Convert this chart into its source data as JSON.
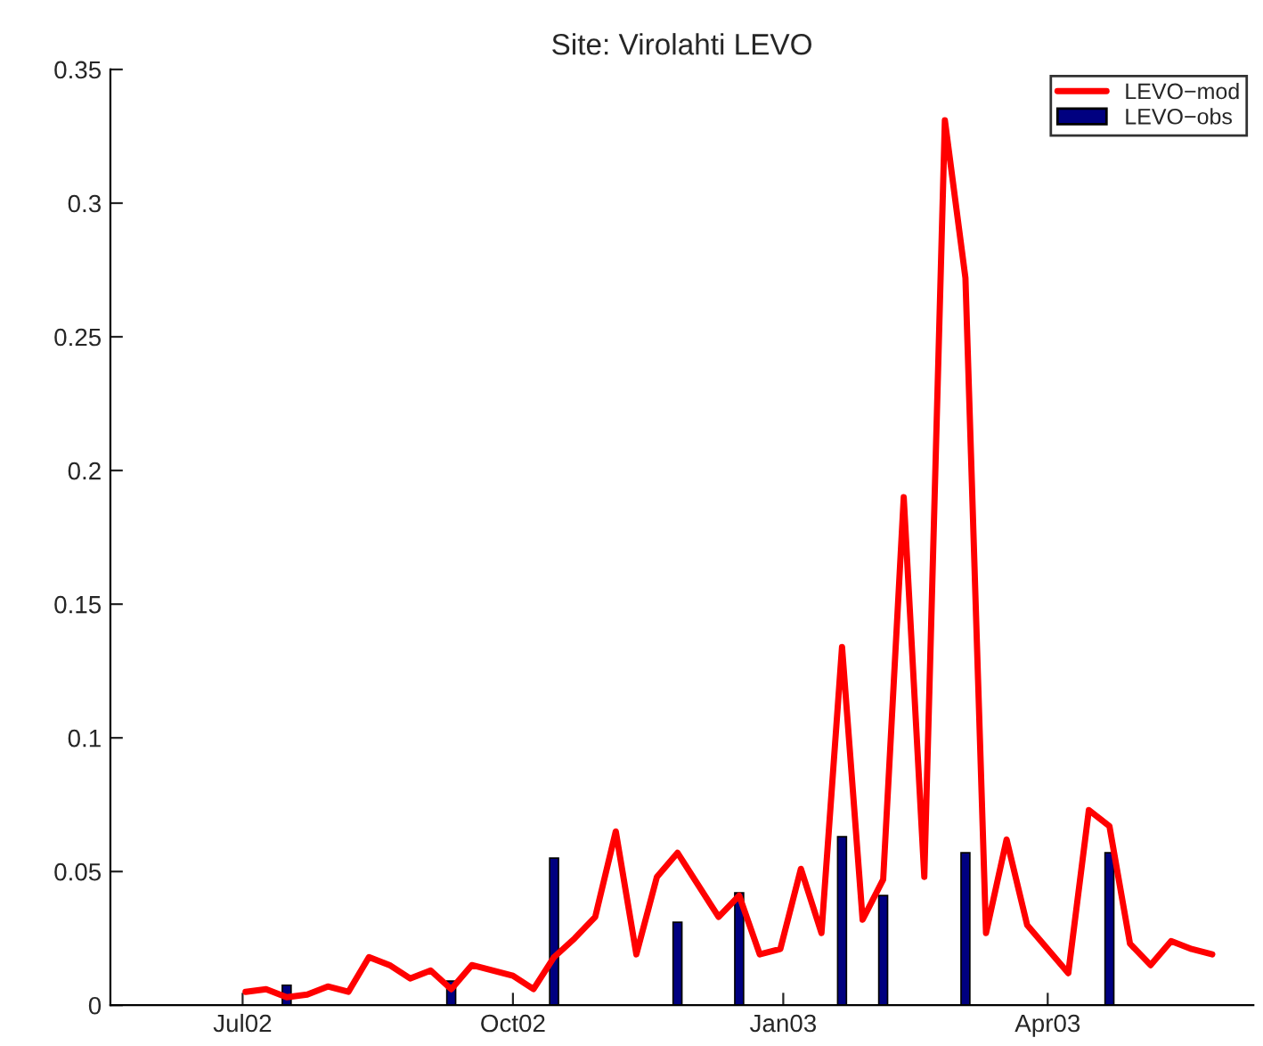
{
  "chart_data": {
    "type": "line",
    "title": "Site: Virolahti LEVO",
    "series": [
      {
        "name": "LEVO−mod",
        "color": "#ff0000",
        "x": [
          "2002-07-02",
          "2002-07-09",
          "2002-07-16",
          "2002-07-23",
          "2002-07-30",
          "2002-08-06",
          "2002-08-13",
          "2002-08-20",
          "2002-08-27",
          "2002-09-03",
          "2002-09-10",
          "2002-09-17",
          "2002-09-24",
          "2002-10-01",
          "2002-10-08",
          "2002-10-15",
          "2002-10-22",
          "2002-10-29",
          "2002-11-05",
          "2002-11-12",
          "2002-11-19",
          "2002-11-26",
          "2002-12-03",
          "2002-12-10",
          "2002-12-17",
          "2002-12-24",
          "2002-12-31",
          "2003-01-07",
          "2003-01-14",
          "2003-01-21",
          "2003-01-28",
          "2003-02-04",
          "2003-02-11",
          "2003-02-18",
          "2003-02-25",
          "2003-03-04",
          "2003-03-11",
          "2003-03-18",
          "2003-03-25",
          "2003-04-01",
          "2003-04-08",
          "2003-04-15",
          "2003-04-22",
          "2003-04-29",
          "2003-05-06",
          "2003-05-13",
          "2003-05-20",
          "2003-05-27"
        ],
        "values": [
          0.005,
          0.006,
          0.003,
          0.004,
          0.007,
          0.005,
          0.018,
          0.015,
          0.01,
          0.013,
          0.006,
          0.015,
          0.013,
          0.011,
          0.006,
          0.018,
          0.025,
          0.033,
          0.065,
          0.019,
          0.048,
          0.057,
          0.045,
          0.033,
          0.041,
          0.019,
          0.021,
          0.051,
          0.027,
          0.134,
          0.032,
          0.047,
          0.19,
          0.048,
          0.331,
          0.272,
          0.027,
          0.062,
          0.03,
          0.021,
          0.012,
          0.073,
          0.067,
          0.023,
          0.015,
          0.024,
          0.021,
          0.019
        ]
      },
      {
        "name": "LEVO−obs",
        "type": "bar",
        "color": "#000080",
        "x": [
          "2002-07-16",
          "2002-09-10",
          "2002-10-15",
          "2002-11-26",
          "2002-12-17",
          "2003-01-21",
          "2003-02-04",
          "2003-03-04",
          "2003-04-22"
        ],
        "values": [
          0.0075,
          0.009,
          0.055,
          0.031,
          0.042,
          0.063,
          0.041,
          0.057,
          0.057
        ]
      }
    ],
    "xlim": [
      "2002-05-17",
      "2003-06-10"
    ],
    "xticks": [
      {
        "value": "2002-07-01",
        "label": "Jul02"
      },
      {
        "value": "2002-10-01",
        "label": "Oct02"
      },
      {
        "value": "2003-01-01",
        "label": "Jan03"
      },
      {
        "value": "2003-04-01",
        "label": "Apr03"
      }
    ],
    "ylim": [
      0,
      0.35
    ],
    "yticks": [
      {
        "value": 0,
        "label": "0"
      },
      {
        "value": 0.05,
        "label": "0.05"
      },
      {
        "value": 0.1,
        "label": "0.1"
      },
      {
        "value": 0.15,
        "label": "0.15"
      },
      {
        "value": 0.2,
        "label": "0.2"
      },
      {
        "value": 0.25,
        "label": "0.25"
      },
      {
        "value": 0.3,
        "label": "0.3"
      },
      {
        "value": 0.35,
        "label": "0.35"
      }
    ],
    "legend": "top right",
    "grid": false
  }
}
